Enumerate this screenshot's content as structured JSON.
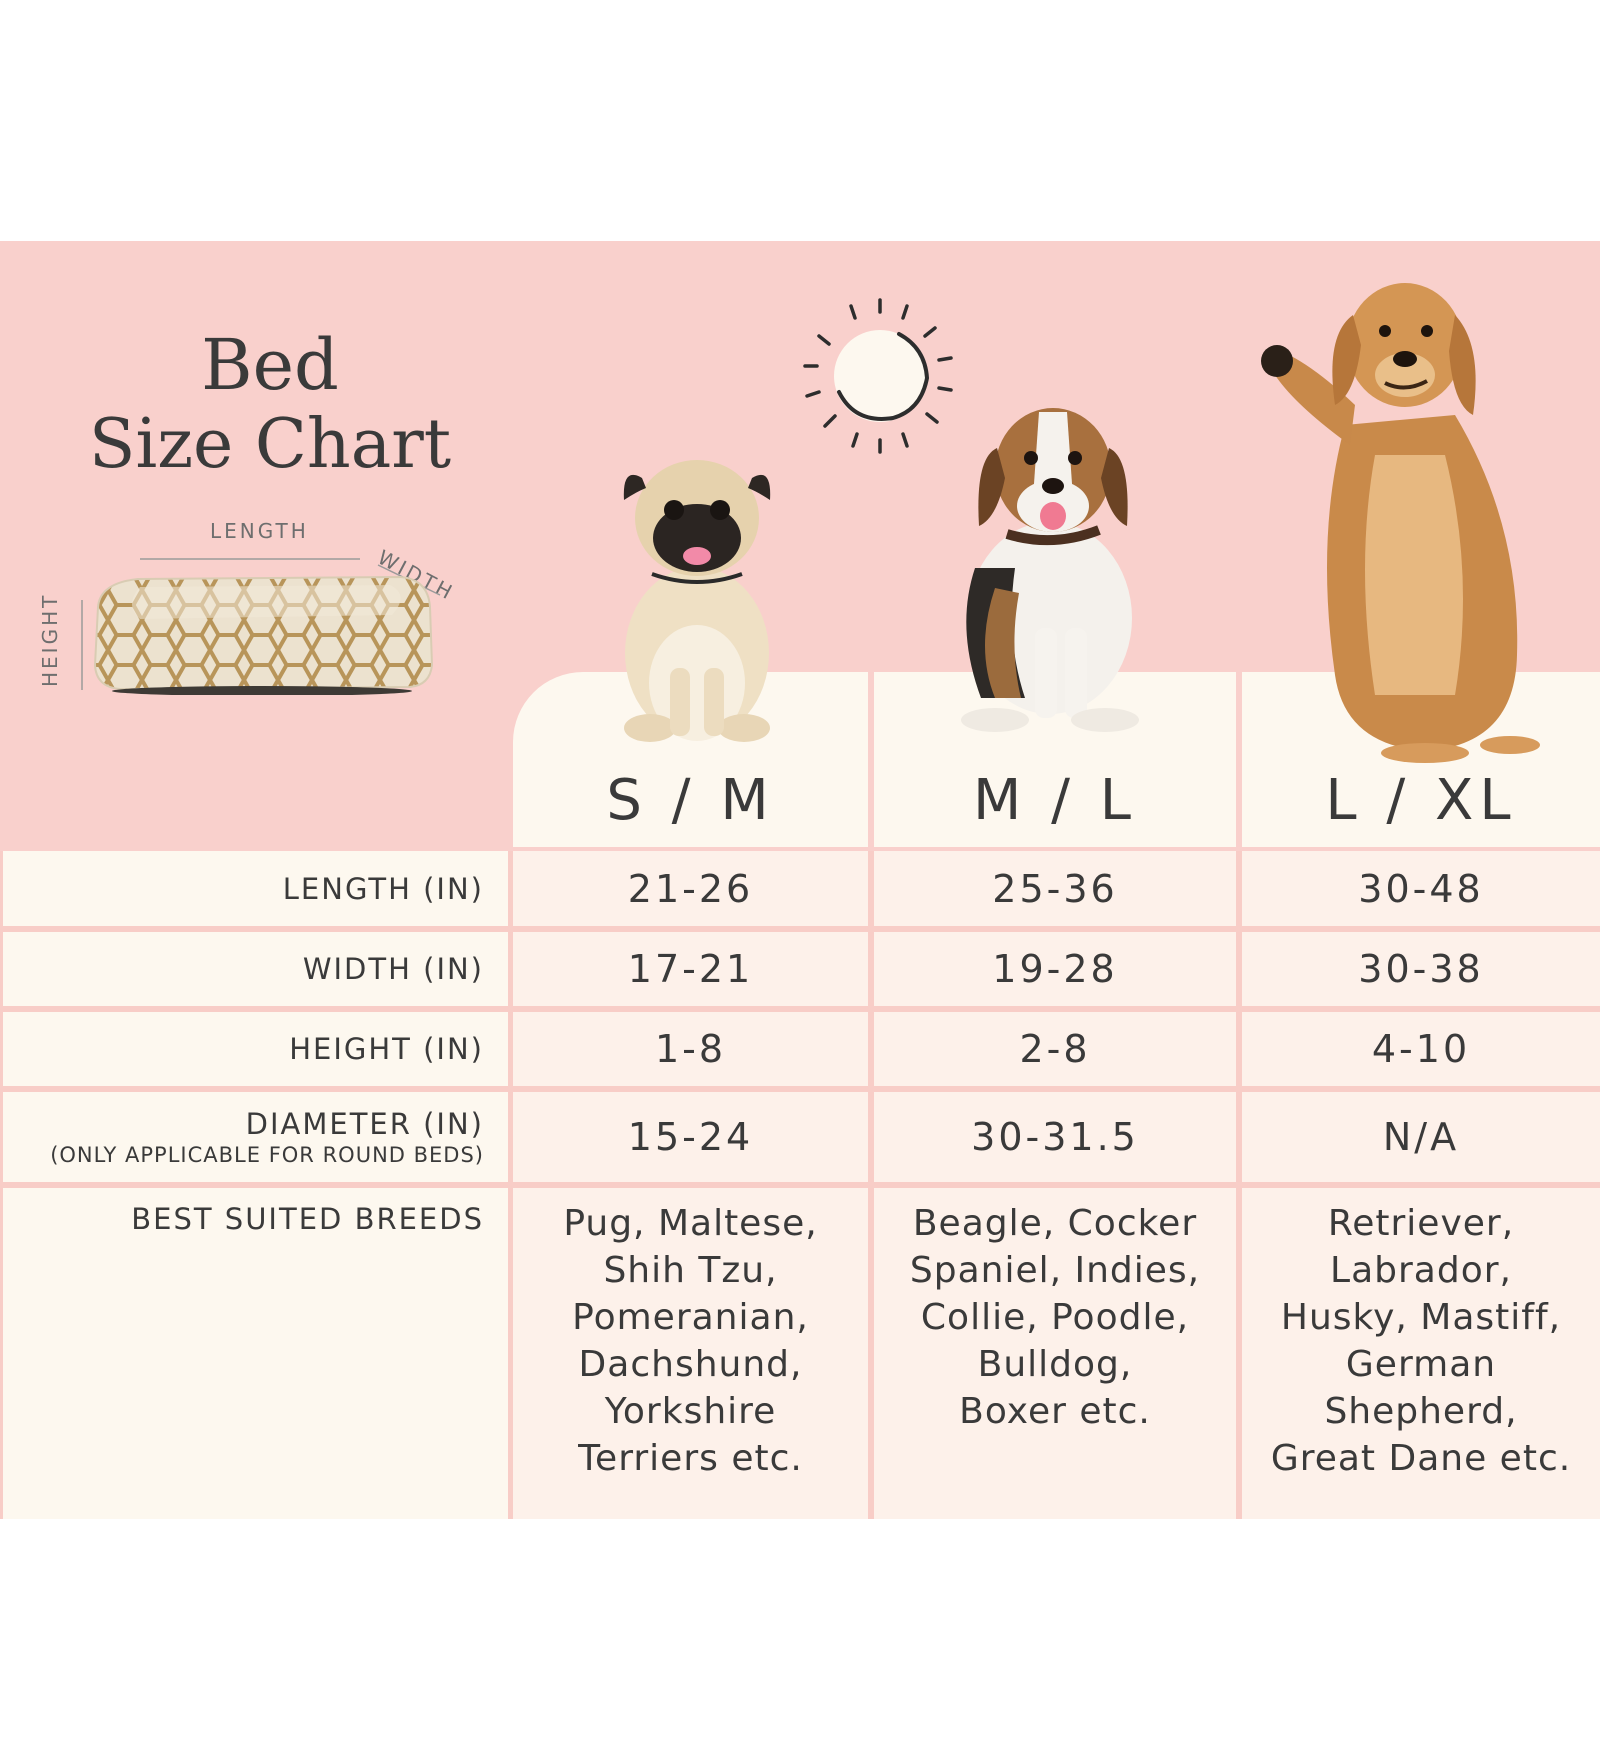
{
  "title": {
    "line1": "Bed",
    "line2": "Size Chart"
  },
  "bed_diagram": {
    "length": "LENGTH",
    "width": "WIDTH",
    "height": "HEIGHT"
  },
  "sizes": [
    "S / M",
    "M / L",
    "L / XL"
  ],
  "rows": [
    {
      "label": "LENGTH (IN)",
      "sub": "",
      "values": [
        "21-26",
        "25-36",
        "30-48"
      ]
    },
    {
      "label": "WIDTH (IN)",
      "sub": "",
      "values": [
        "17-21",
        "19-28",
        "30-38"
      ]
    },
    {
      "label": "HEIGHT (IN)",
      "sub": "",
      "values": [
        "1-8",
        "2-8",
        "4-10"
      ]
    },
    {
      "label": "DIAMETER (IN)",
      "sub": "(ONLY APPLICABLE FOR ROUND BEDS)",
      "values": [
        "15-24",
        "30-31.5",
        "N/A"
      ]
    }
  ],
  "breeds": {
    "label": "BEST SUITED BREEDS",
    "values": [
      "Pug, Maltese, Shih Tzu, Pomeranian, Dachshund, Yorkshire Terriers etc.",
      "Beagle, Cocker Spaniel, Indies, Collie, Poodle, Bulldog, Boxer etc.",
      "Retriever, Labrador, Husky, Mastiff, German Shepherd, Great Dane etc."
    ],
    "lines": [
      [
        "Pug, Maltese,",
        "Shih Tzu,",
        "Pomeranian,",
        "Dachshund,",
        "Yorkshire",
        "Terriers etc."
      ],
      [
        "Beagle, Cocker",
        "Spaniel, Indies,",
        "Collie, Poodle,",
        "Bulldog,",
        "Boxer etc."
      ],
      [
        "Retriever,",
        "Labrador,",
        "Husky, Mastiff,",
        "German",
        "Shepherd,",
        "Great Dane etc."
      ]
    ]
  },
  "colors": {
    "band": "#f9d0cc",
    "cream": "#fdf8ef",
    "cell": "#fdf1ea",
    "text": "#3a3a3a"
  },
  "icons": [
    "sun-icon",
    "pug-image",
    "beagle-image",
    "golden-retriever-image",
    "dog-bed-image"
  ]
}
